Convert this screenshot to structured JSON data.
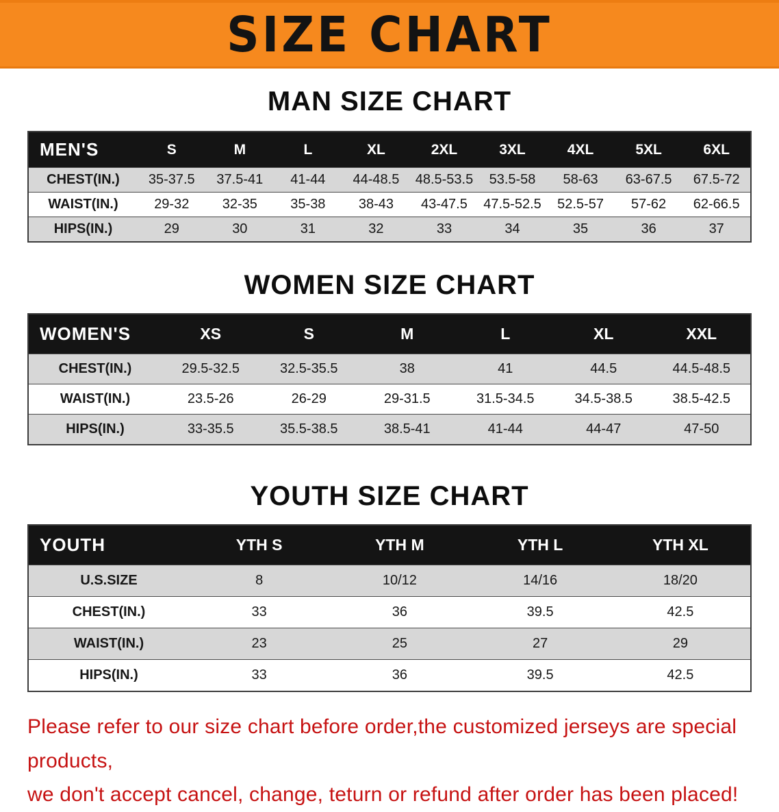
{
  "colors": {
    "banner_orange": "#F6891E",
    "header_bg": "#141414",
    "row_gray": "#D7D7D7",
    "notice_red": "#C61212"
  },
  "banner": {
    "title": "SIZE CHART"
  },
  "man": {
    "heading": "MAN SIZE CHART",
    "header": [
      "MEN'S",
      "S",
      "M",
      "L",
      "XL",
      "2XL",
      "3XL",
      "4XL",
      "5XL",
      "6XL"
    ],
    "rows": [
      [
        "CHEST(IN.)",
        "35-37.5",
        "37.5-41",
        "41-44",
        "44-48.5",
        "48.5-53.5",
        "53.5-58",
        "58-63",
        "63-67.5",
        "67.5-72"
      ],
      [
        "WAIST(IN.)",
        "29-32",
        "32-35",
        "35-38",
        "38-43",
        "43-47.5",
        "47.5-52.5",
        "52.5-57",
        "57-62",
        "62-66.5"
      ],
      [
        "HIPS(IN.)",
        "29",
        "30",
        "31",
        "32",
        "33",
        "34",
        "35",
        "36",
        "37"
      ]
    ]
  },
  "women": {
    "heading": "WOMEN SIZE CHART",
    "header": [
      "WOMEN'S",
      "XS",
      "S",
      "M",
      "L",
      "XL",
      "XXL"
    ],
    "rows": [
      [
        "CHEST(IN.)",
        "29.5-32.5",
        "32.5-35.5",
        "38",
        "41",
        "44.5",
        "44.5-48.5"
      ],
      [
        "WAIST(IN.)",
        "23.5-26",
        "26-29",
        "29-31.5",
        "31.5-34.5",
        "34.5-38.5",
        "38.5-42.5"
      ],
      [
        "HIPS(IN.)",
        "33-35.5",
        "35.5-38.5",
        "38.5-41",
        "41-44",
        "44-47",
        "47-50"
      ]
    ]
  },
  "youth": {
    "heading": "YOUTH SIZE CHART",
    "header": [
      "YOUTH",
      "YTH S",
      "YTH M",
      "YTH L",
      "YTH XL"
    ],
    "rows": [
      [
        "U.S.SIZE",
        "8",
        "10/12",
        "14/16",
        "18/20"
      ],
      [
        "CHEST(IN.)",
        "33",
        "36",
        "39.5",
        "42.5"
      ],
      [
        "WAIST(IN.)",
        "23",
        "25",
        "27",
        "29"
      ],
      [
        "HIPS(IN.)",
        "33",
        "36",
        "39.5",
        "42.5"
      ]
    ]
  },
  "notice": {
    "line1": "Please refer to our size chart before order,the customized jerseys are special products,",
    "line2": "we don't accept cancel, change, teturn or refund after order has been placed!"
  }
}
